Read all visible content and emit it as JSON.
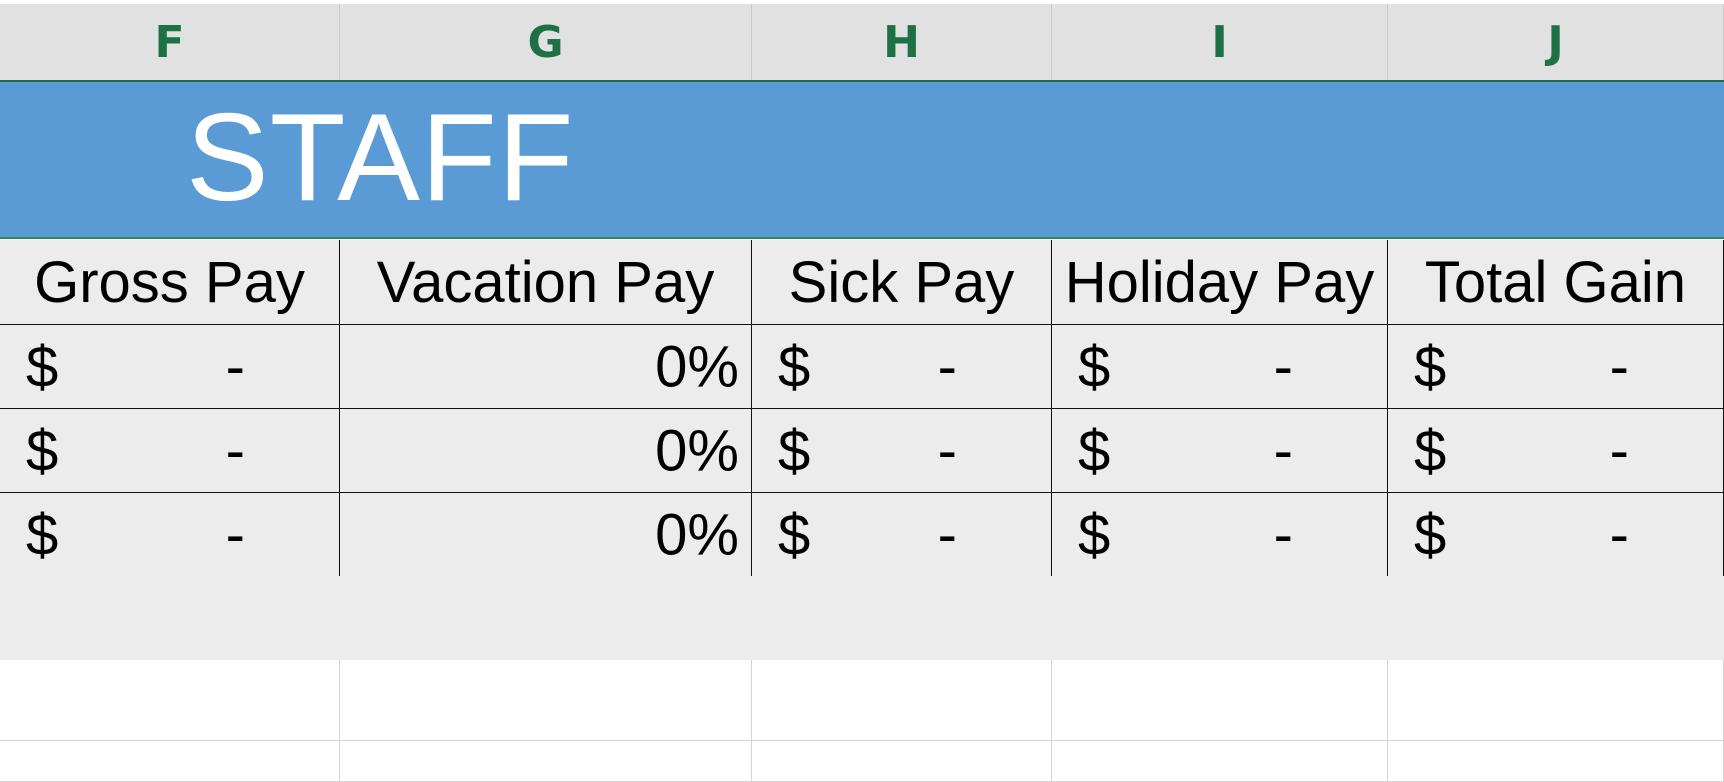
{
  "columns": [
    "F",
    "G",
    "H",
    "I",
    "J"
  ],
  "title": "STAFF",
  "headers": {
    "gross_pay": "Gross Pay",
    "vacation_pay": "Vacation Pay",
    "sick_pay": "Sick Pay",
    "holiday_pay": "Holiday Pay",
    "total_gain": "Total Gain"
  },
  "rows": [
    {
      "gross_pay": {
        "symbol": "$",
        "value": "-"
      },
      "vacation_pay": "0%",
      "sick_pay": {
        "symbol": "$",
        "value": "-"
      },
      "holiday_pay": {
        "symbol": "$",
        "value": "-"
      },
      "total_gain": {
        "symbol": "$",
        "value": "-"
      }
    },
    {
      "gross_pay": {
        "symbol": "$",
        "value": "-"
      },
      "vacation_pay": "0%",
      "sick_pay": {
        "symbol": "$",
        "value": "-"
      },
      "holiday_pay": {
        "symbol": "$",
        "value": "-"
      },
      "total_gain": {
        "symbol": "$",
        "value": "-"
      }
    },
    {
      "gross_pay": {
        "symbol": "$",
        "value": "-"
      },
      "vacation_pay": "0%",
      "sick_pay": {
        "symbol": "$",
        "value": "-"
      },
      "holiday_pay": {
        "symbol": "$",
        "value": "-"
      },
      "total_gain": {
        "symbol": "$",
        "value": "-"
      }
    }
  ],
  "colors": {
    "title_band": "#5b9bd5",
    "column_header_text": "#1e7145",
    "row_fill": "#ececec"
  }
}
